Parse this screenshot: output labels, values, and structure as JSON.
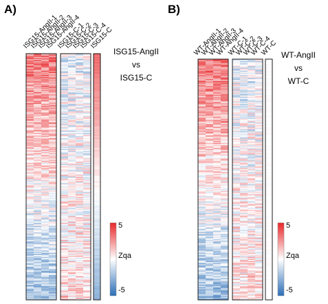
{
  "chart_data": [
    {
      "type": "heatmap",
      "panel_label": "A)",
      "columns": [
        "ISG15-AngII-1",
        "ISG15-AngII-2",
        "ISG15-AngII-3",
        "ISG15-AngII-4",
        "ISG15-C-1",
        "ISG15-C-2",
        "ISG15-C-3",
        "ISG15-C-4",
        "ISG15-C"
      ],
      "column_groups": [
        {
          "columns": [
            0,
            1,
            2,
            3
          ],
          "trend": "high_to_low"
        },
        {
          "columns": [
            4,
            5,
            6,
            7
          ],
          "trend": "mixed"
        },
        {
          "columns": [
            8
          ],
          "trend": "high_to_low_summary"
        }
      ],
      "comparison_lines": [
        "ISG15-AngII",
        "vs",
        "ISG15-C"
      ],
      "rows_approx": 230,
      "colorbar": {
        "label": "Zqa",
        "max_label": "5",
        "min_label": "-5",
        "range": [
          -5,
          5
        ],
        "colors": [
          "#2c6fb8",
          "#ffffff",
          "#e8272a"
        ]
      }
    },
    {
      "type": "heatmap",
      "panel_label": "B)",
      "columns": [
        "WT-AngII-1",
        "WT-AngII-2",
        "WT-AngII-3",
        "WT-AngII-4",
        "WT-C-1",
        "WT-C-2",
        "WT-C-3",
        "WT-C-4",
        "WT-C"
      ],
      "column_groups": [
        {
          "columns": [
            0,
            1,
            2,
            3
          ],
          "trend": "high_to_low"
        },
        {
          "columns": [
            4,
            5,
            6,
            7
          ],
          "trend": "mixed"
        },
        {
          "columns": [
            8
          ],
          "trend": "neutral"
        }
      ],
      "comparison_lines": [
        "WT-AngII",
        "vs",
        "WT-C"
      ],
      "rows_approx": 230,
      "colorbar": {
        "label": "Zqa",
        "max_label": "5",
        "min_label": "-5",
        "range": [
          -5,
          5
        ],
        "colors": [
          "#2c6fb8",
          "#ffffff",
          "#e8272a"
        ]
      }
    }
  ]
}
